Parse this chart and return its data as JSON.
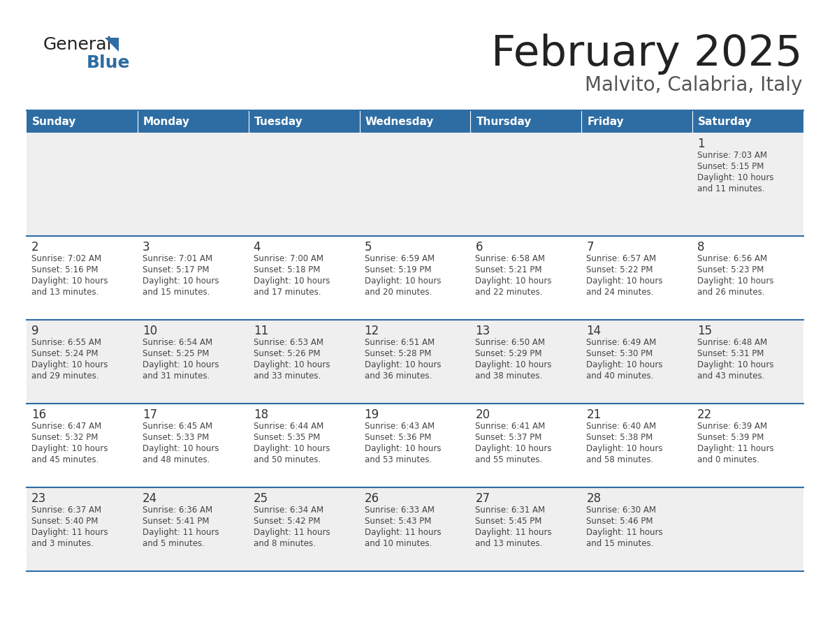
{
  "title": "February 2025",
  "subtitle": "Malvito, Calabria, Italy",
  "days_of_week": [
    "Sunday",
    "Monday",
    "Tuesday",
    "Wednesday",
    "Thursday",
    "Friday",
    "Saturday"
  ],
  "header_bg": "#2e6da4",
  "header_text": "#ffffff",
  "row_bg_odd": "#efefef",
  "row_bg_even": "#ffffff",
  "separator_color": "#2e6da4",
  "day_number_color": "#333333",
  "cell_text_color": "#444444",
  "title_color": "#222222",
  "subtitle_color": "#555555",
  "logo_general_color": "#222222",
  "logo_blue_color": "#2e6da4",
  "calendar": [
    [
      {
        "day": "",
        "sunrise": "",
        "sunset": "",
        "daylight": ""
      },
      {
        "day": "",
        "sunrise": "",
        "sunset": "",
        "daylight": ""
      },
      {
        "day": "",
        "sunrise": "",
        "sunset": "",
        "daylight": ""
      },
      {
        "day": "",
        "sunrise": "",
        "sunset": "",
        "daylight": ""
      },
      {
        "day": "",
        "sunrise": "",
        "sunset": "",
        "daylight": ""
      },
      {
        "day": "",
        "sunrise": "",
        "sunset": "",
        "daylight": ""
      },
      {
        "day": "1",
        "sunrise": "7:03 AM",
        "sunset": "5:15 PM",
        "daylight": "10 hours\nand 11 minutes."
      }
    ],
    [
      {
        "day": "2",
        "sunrise": "7:02 AM",
        "sunset": "5:16 PM",
        "daylight": "10 hours\nand 13 minutes."
      },
      {
        "day": "3",
        "sunrise": "7:01 AM",
        "sunset": "5:17 PM",
        "daylight": "10 hours\nand 15 minutes."
      },
      {
        "day": "4",
        "sunrise": "7:00 AM",
        "sunset": "5:18 PM",
        "daylight": "10 hours\nand 17 minutes."
      },
      {
        "day": "5",
        "sunrise": "6:59 AM",
        "sunset": "5:19 PM",
        "daylight": "10 hours\nand 20 minutes."
      },
      {
        "day": "6",
        "sunrise": "6:58 AM",
        "sunset": "5:21 PM",
        "daylight": "10 hours\nand 22 minutes."
      },
      {
        "day": "7",
        "sunrise": "6:57 AM",
        "sunset": "5:22 PM",
        "daylight": "10 hours\nand 24 minutes."
      },
      {
        "day": "8",
        "sunrise": "6:56 AM",
        "sunset": "5:23 PM",
        "daylight": "10 hours\nand 26 minutes."
      }
    ],
    [
      {
        "day": "9",
        "sunrise": "6:55 AM",
        "sunset": "5:24 PM",
        "daylight": "10 hours\nand 29 minutes."
      },
      {
        "day": "10",
        "sunrise": "6:54 AM",
        "sunset": "5:25 PM",
        "daylight": "10 hours\nand 31 minutes."
      },
      {
        "day": "11",
        "sunrise": "6:53 AM",
        "sunset": "5:26 PM",
        "daylight": "10 hours\nand 33 minutes."
      },
      {
        "day": "12",
        "sunrise": "6:51 AM",
        "sunset": "5:28 PM",
        "daylight": "10 hours\nand 36 minutes."
      },
      {
        "day": "13",
        "sunrise": "6:50 AM",
        "sunset": "5:29 PM",
        "daylight": "10 hours\nand 38 minutes."
      },
      {
        "day": "14",
        "sunrise": "6:49 AM",
        "sunset": "5:30 PM",
        "daylight": "10 hours\nand 40 minutes."
      },
      {
        "day": "15",
        "sunrise": "6:48 AM",
        "sunset": "5:31 PM",
        "daylight": "10 hours\nand 43 minutes."
      }
    ],
    [
      {
        "day": "16",
        "sunrise": "6:47 AM",
        "sunset": "5:32 PM",
        "daylight": "10 hours\nand 45 minutes."
      },
      {
        "day": "17",
        "sunrise": "6:45 AM",
        "sunset": "5:33 PM",
        "daylight": "10 hours\nand 48 minutes."
      },
      {
        "day": "18",
        "sunrise": "6:44 AM",
        "sunset": "5:35 PM",
        "daylight": "10 hours\nand 50 minutes."
      },
      {
        "day": "19",
        "sunrise": "6:43 AM",
        "sunset": "5:36 PM",
        "daylight": "10 hours\nand 53 minutes."
      },
      {
        "day": "20",
        "sunrise": "6:41 AM",
        "sunset": "5:37 PM",
        "daylight": "10 hours\nand 55 minutes."
      },
      {
        "day": "21",
        "sunrise": "6:40 AM",
        "sunset": "5:38 PM",
        "daylight": "10 hours\nand 58 minutes."
      },
      {
        "day": "22",
        "sunrise": "6:39 AM",
        "sunset": "5:39 PM",
        "daylight": "11 hours\nand 0 minutes."
      }
    ],
    [
      {
        "day": "23",
        "sunrise": "6:37 AM",
        "sunset": "5:40 PM",
        "daylight": "11 hours\nand 3 minutes."
      },
      {
        "day": "24",
        "sunrise": "6:36 AM",
        "sunset": "5:41 PM",
        "daylight": "11 hours\nand 5 minutes."
      },
      {
        "day": "25",
        "sunrise": "6:34 AM",
        "sunset": "5:42 PM",
        "daylight": "11 hours\nand 8 minutes."
      },
      {
        "day": "26",
        "sunrise": "6:33 AM",
        "sunset": "5:43 PM",
        "daylight": "11 hours\nand 10 minutes."
      },
      {
        "day": "27",
        "sunrise": "6:31 AM",
        "sunset": "5:45 PM",
        "daylight": "11 hours\nand 13 minutes."
      },
      {
        "day": "28",
        "sunrise": "6:30 AM",
        "sunset": "5:46 PM",
        "daylight": "11 hours\nand 15 minutes."
      },
      {
        "day": "",
        "sunrise": "",
        "sunset": "",
        "daylight": ""
      }
    ]
  ],
  "fig_width": 11.88,
  "fig_height": 9.18,
  "dpi": 100
}
